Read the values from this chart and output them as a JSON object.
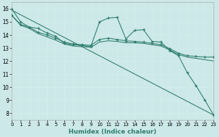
{
  "xlabel": "Humidex (Indice chaleur)",
  "bg_color": "#cce8e8",
  "line_color": "#2e7d6e",
  "grid_color": "#d4eded",
  "xlim": [
    0,
    23
  ],
  "ylim": [
    7.5,
    16.5
  ],
  "xticks": [
    0,
    1,
    2,
    3,
    4,
    5,
    6,
    7,
    8,
    9,
    10,
    11,
    12,
    13,
    14,
    15,
    16,
    17,
    18,
    19,
    20,
    21,
    22,
    23
  ],
  "yticks": [
    8,
    9,
    10,
    11,
    12,
    13,
    14,
    15,
    16
  ],
  "series": [
    {
      "x": [
        0,
        1,
        2,
        3,
        4,
        5,
        6,
        7,
        8,
        9,
        10,
        11,
        12,
        13,
        14,
        15,
        16,
        17,
        18,
        19,
        20,
        21,
        22,
        23
      ],
      "y": [
        16.0,
        15.0,
        14.6,
        14.5,
        14.15,
        13.9,
        13.35,
        13.25,
        13.2,
        13.1,
        15.0,
        15.3,
        15.35,
        13.7,
        14.35,
        14.4,
        13.5,
        13.45,
        12.8,
        12.4,
        11.1,
        10.1,
        9.0,
        7.85
      ],
      "marker": true
    },
    {
      "x": [
        0,
        1,
        2,
        3,
        4,
        5,
        6,
        7,
        8,
        9,
        10,
        11,
        12,
        13,
        14,
        15,
        16,
        17,
        18,
        19,
        20,
        21,
        22,
        23
      ],
      "y": [
        15.5,
        14.8,
        14.6,
        14.2,
        14.0,
        13.75,
        13.45,
        13.3,
        13.25,
        13.2,
        13.65,
        13.75,
        13.65,
        13.55,
        13.5,
        13.45,
        13.35,
        13.25,
        12.95,
        12.6,
        12.4,
        12.35,
        12.3,
        12.3
      ],
      "marker": true
    },
    {
      "x": [
        0,
        1,
        2,
        3,
        4,
        5,
        6,
        7,
        8,
        9,
        10,
        11,
        12,
        13,
        14,
        15,
        16,
        17,
        18,
        19,
        20,
        21,
        22,
        23
      ],
      "y": [
        15.5,
        14.75,
        14.5,
        14.1,
        13.85,
        13.6,
        13.3,
        13.15,
        13.1,
        13.05,
        13.45,
        13.55,
        13.5,
        13.4,
        13.4,
        13.35,
        13.25,
        13.15,
        12.85,
        12.5,
        12.3,
        12.2,
        12.1,
        12.0
      ],
      "marker": false
    },
    {
      "x": [
        0,
        23
      ],
      "y": [
        15.9,
        7.85
      ],
      "marker": false
    }
  ]
}
